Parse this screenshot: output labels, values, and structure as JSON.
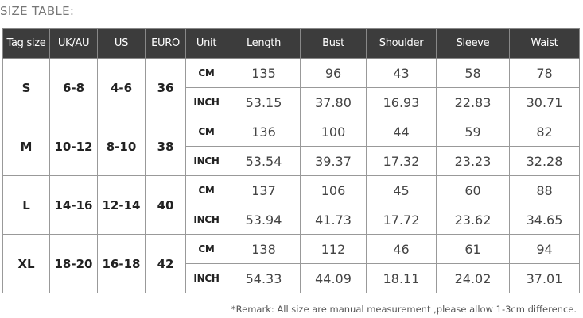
{
  "title": "SIZE TABLE:",
  "headers": [
    "Tag size",
    "UK/AU",
    "US",
    "EURO",
    "Unit",
    "Length",
    "Bust",
    "Shoulder",
    "Sleeve",
    "Waist"
  ],
  "units": {
    "cm": "CM",
    "inch": "INCH"
  },
  "rows": [
    {
      "tag": "S",
      "uk": "6-8",
      "us": "4-6",
      "euro": "36",
      "cm": [
        "135",
        "96",
        "43",
        "58",
        "78"
      ],
      "inch": [
        "53.15",
        "37.80",
        "16.93",
        "22.83",
        "30.71"
      ]
    },
    {
      "tag": "M",
      "uk": "10-12",
      "us": "8-10",
      "euro": "38",
      "cm": [
        "136",
        "100",
        "44",
        "59",
        "82"
      ],
      "inch": [
        "53.54",
        "39.37",
        "17.32",
        "23.23",
        "32.28"
      ]
    },
    {
      "tag": "L",
      "uk": "14-16",
      "us": "12-14",
      "euro": "40",
      "cm": [
        "137",
        "106",
        "45",
        "60",
        "88"
      ],
      "inch": [
        "53.94",
        "41.73",
        "17.72",
        "23.62",
        "34.65"
      ]
    },
    {
      "tag": "XL",
      "uk": "18-20",
      "us": "16-18",
      "euro": "42",
      "cm": [
        "138",
        "112",
        "46",
        "61",
        "94"
      ],
      "inch": [
        "54.33",
        "44.09",
        "18.11",
        "24.02",
        "37.01"
      ]
    }
  ],
  "remark": "*Remark: All size are manual measurement ,please allow 1-3cm difference."
}
